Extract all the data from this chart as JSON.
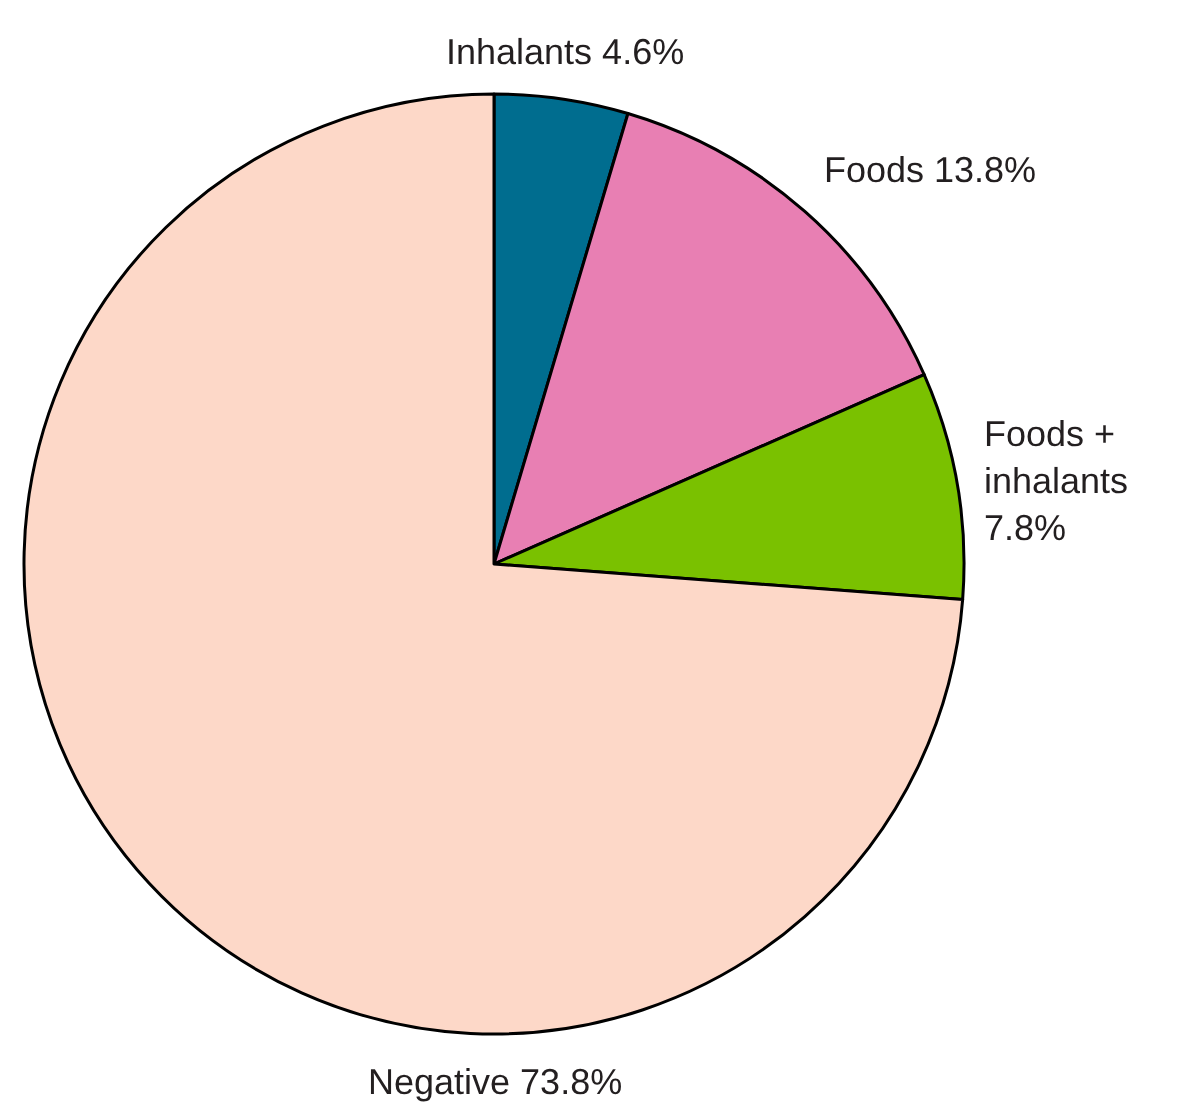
{
  "chart_data": {
    "type": "pie",
    "categories": [
      "Inhalants",
      "Foods",
      "Foods + inhalants",
      "Negative"
    ],
    "values": [
      4.6,
      13.8,
      7.8,
      73.8
    ],
    "value_labels": [
      "4.6%",
      "13.8%",
      "7.8%",
      "73.8%"
    ],
    "colors": [
      "#006d8f",
      "#e87fb3",
      "#7ac100",
      "#fdd8c8"
    ]
  }
}
